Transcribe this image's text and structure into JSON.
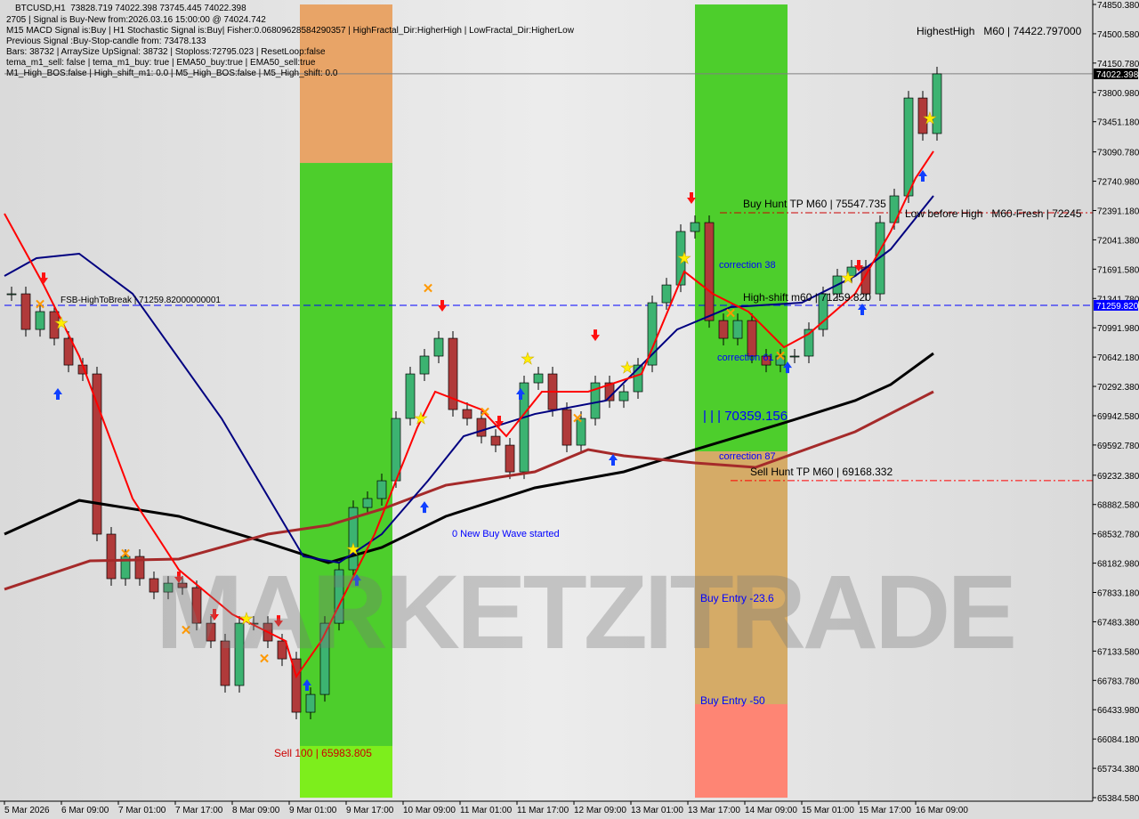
{
  "header": {
    "symbol_line": "BTCUSD,H1  73828.719 74022.398 73745.445 74022.398",
    "lines": [
      "2705 | Signal is Buy-New from:2026.03.16 15:00:00 @ 74024.742",
      "M15 MACD Signal is:Buy | H1 Stochastic Signal is:Buy| Fisher:0.06809628584290357 | HighFractal_Dir:HigherHigh | LowFractal_Dir:HigherLow",
      "Previous Signal :Buy-Stop-candle from: 73478.133",
      "Bars: 38732 | ArraySize UpSignal: 38732 | Stoploss:72795.023 | ResetLoop:false",
      "tema_m1_sell: false | tema_m1_buy: true | EMA50_buy:true | EMA50_sell:true",
      "M1_High_BOS:false | High_shift_m1: 0.0 | M5_High_BOS:false | M5_High_shift: 0.0"
    ]
  },
  "watermark": "MARKETZITRADE",
  "colors": {
    "bull": "#3cb371",
    "bear": "#b03a3a",
    "ema_black": "#000000",
    "ema_brown": "#a52a2a",
    "ema_navy": "#000080",
    "ema_red": "#ff0000",
    "zone_green": "#44cc22",
    "zone_red": "#ff7f6e",
    "zone_tan": "#d4a860",
    "current_price_bg": "#000000",
    "level_bg": "#0000ff"
  },
  "chart_data": {
    "type": "candlestick",
    "symbol": "BTCUSD",
    "timeframe": "H1",
    "ylim": [
      65384.58,
      74850.38
    ],
    "grid": false,
    "y_ticks": [
      "74850.380",
      "74500.580",
      "74150.780",
      "73800.980",
      "73451.180",
      "73090.780",
      "72740.980",
      "72391.180",
      "72041.380",
      "71691.580",
      "71341.780",
      "70991.980",
      "70642.180",
      "70292.380",
      "69942.580",
      "69592.780",
      "69232.380",
      "68882.580",
      "68532.780",
      "68182.980",
      "67833.180",
      "67483.380",
      "67133.580",
      "66783.780",
      "66433.980",
      "66084.180",
      "65734.380",
      "65384.580"
    ],
    "x_ticks": [
      "5 Mar 2026",
      "6 Mar 09:00",
      "7 Mar 01:00",
      "7 Mar 17:00",
      "8 Mar 09:00",
      "9 Mar 01:00",
      "9 Mar 17:00",
      "10 Mar 09:00",
      "11 Mar 01:00",
      "11 Mar 17:00",
      "12 Mar 09:00",
      "13 Mar 01:00",
      "13 Mar 17:00",
      "14 Mar 09:00",
      "15 Mar 01:00",
      "15 Mar 17:00",
      "16 Mar 09:00"
    ],
    "current_price": "74022.398",
    "level_price": "71259.820",
    "closes_start": "2026-03-05T17:00",
    "closes_step_hours": 4,
    "closes": [
      71397,
      70972,
      71185,
      70866,
      70547,
      70441,
      68529,
      67998,
      68263,
      67998,
      67838,
      67944,
      67891,
      67466,
      67254,
      66723,
      67466,
      67466,
      67254,
      67041,
      66404,
      66616,
      67466,
      68104,
      68847,
      68954,
      69166,
      69910,
      70441,
      70654,
      70866,
      70016,
      69910,
      69697,
      69591,
      69272,
      70335,
      70441,
      70016,
      69591,
      69910,
      70335,
      70122,
      70229,
      70547,
      71291,
      71503,
      72141,
      72247,
      71078,
      70866,
      71078,
      70654,
      70547,
      70654,
      70654,
      70972,
      71397,
      71610,
      71716,
      71397,
      72247,
      72566,
      73734,
      73310,
      74022
    ],
    "series": [
      {
        "color": "#000000",
        "points": [
          [
            "2026-03-05T17:00",
            68529
          ],
          [
            "2026-03-06T14:00",
            68932
          ],
          [
            "2026-03-07T18:00",
            68742
          ],
          [
            "2026-03-08T19:00",
            68423
          ],
          [
            "2026-03-09T12:00",
            68189
          ],
          [
            "2026-03-10T03:00",
            68370
          ],
          [
            "2026-03-10T21:00",
            68742
          ],
          [
            "2026-03-11T22:00",
            69082
          ],
          [
            "2026-03-12T23:00",
            69273
          ],
          [
            "2026-03-13T19:00",
            69538
          ],
          [
            "2026-03-14T20:00",
            69857
          ],
          [
            "2026-03-15T16:00",
            70123
          ],
          [
            "2026-03-16T02:00",
            70314
          ],
          [
            "2026-03-16T14:00",
            70686
          ]
        ]
      },
      {
        "color": "#a52a2a",
        "points": [
          [
            "2026-03-05T17:00",
            67871
          ],
          [
            "2026-03-06T17:00",
            68210
          ],
          [
            "2026-03-07T18:00",
            68232
          ],
          [
            "2026-03-08T19:00",
            68529
          ],
          [
            "2026-03-09T12:00",
            68635
          ],
          [
            "2026-03-10T03:00",
            68827
          ],
          [
            "2026-03-10T21:00",
            69113
          ],
          [
            "2026-03-11T22:00",
            69273
          ],
          [
            "2026-03-12T13:00",
            69538
          ],
          [
            "2026-03-12T23:00",
            69464
          ],
          [
            "2026-03-13T19:00",
            69379
          ],
          [
            "2026-03-14T12:00",
            69326
          ],
          [
            "2026-03-15T16:00",
            69751
          ],
          [
            "2026-03-16T14:00",
            70229
          ]
        ]
      },
      {
        "color": "#000080",
        "points": [
          [
            "2026-03-05T17:00",
            71610
          ],
          [
            "2026-03-06T02:00",
            71823
          ],
          [
            "2026-03-06T14:00",
            71876
          ],
          [
            "2026-03-07T05:00",
            71398
          ],
          [
            "2026-03-08T06:00",
            69910
          ],
          [
            "2026-03-09T05:00",
            68264
          ],
          [
            "2026-03-09T15:00",
            68189
          ],
          [
            "2026-03-10T03:00",
            68529
          ],
          [
            "2026-03-10T16:00",
            69167
          ],
          [
            "2026-03-11T02:00",
            69698
          ],
          [
            "2026-03-11T22:00",
            69963
          ],
          [
            "2026-03-12T18:00",
            70123
          ],
          [
            "2026-03-13T14:00",
            70972
          ],
          [
            "2026-03-14T05:00",
            71238
          ],
          [
            "2026-03-15T01:00",
            71291
          ],
          [
            "2026-03-15T16:00",
            71610
          ],
          [
            "2026-03-16T02:00",
            71929
          ],
          [
            "2026-03-16T14:00",
            72566
          ]
        ]
      },
      {
        "color": "#ff0000",
        "points": [
          [
            "2026-03-05T17:00",
            72354
          ],
          [
            "2026-03-06T04:00",
            71504
          ],
          [
            "2026-03-06T14:00",
            70654
          ],
          [
            "2026-03-07T05:00",
            68954
          ],
          [
            "2026-03-07T18:00",
            68104
          ],
          [
            "2026-03-08T09:00",
            67573
          ],
          [
            "2026-03-09T00:00",
            67254
          ],
          [
            "2026-03-09T03:00",
            66829
          ],
          [
            "2026-03-09T10:00",
            67254
          ],
          [
            "2026-03-10T01:00",
            68529
          ],
          [
            "2026-03-10T13:00",
            69804
          ],
          [
            "2026-03-10T18:00",
            70229
          ],
          [
            "2026-03-11T07:00",
            70016
          ],
          [
            "2026-03-11T14:00",
            69698
          ],
          [
            "2026-03-12T00:00",
            70229
          ],
          [
            "2026-03-12T13:00",
            70229
          ],
          [
            "2026-03-13T04:00",
            70441
          ],
          [
            "2026-03-13T16:00",
            71663
          ],
          [
            "2026-03-14T00:00",
            71398
          ],
          [
            "2026-03-14T10:00",
            71185
          ],
          [
            "2026-03-14T20:00",
            70760
          ],
          [
            "2026-03-15T03:00",
            70919
          ],
          [
            "2026-03-15T16:00",
            71398
          ],
          [
            "2026-03-16T02:00",
            72142
          ],
          [
            "2026-03-16T09:00",
            72779
          ],
          [
            "2026-03-16T14:00",
            73098
          ]
        ]
      }
    ],
    "zones": [
      {
        "from": "2026-03-09T04:00",
        "to": "2026-03-10T06:00",
        "bands": [
          {
            "top": 74850,
            "bottom": 72959,
            "color": "#e8a060"
          },
          {
            "top": 72959,
            "bottom": 66001,
            "color": "#44cc22"
          },
          {
            "top": 66001,
            "bottom": 65384,
            "color": "#77ee11"
          }
        ]
      },
      {
        "from": "2026-03-13T19:00",
        "to": "2026-03-14T21:00",
        "bands": [
          {
            "top": 74850,
            "bottom": 69517,
            "color": "#44cc22"
          },
          {
            "top": 69517,
            "bottom": 66500,
            "color": "#d4a860"
          },
          {
            "top": 66500,
            "bottom": 65384,
            "color": "#ff7f6e"
          }
        ]
      }
    ],
    "hlines": [
      {
        "price": 71259.82,
        "color": "#0000ff",
        "style": "dash",
        "from": "2026-03-05T17:00"
      },
      {
        "price": 69168.332,
        "color": "#ff0000",
        "style": "dashdot",
        "from": "2026-03-14T05:00"
      },
      {
        "price": 72364,
        "color": "#cc0000",
        "style": "dashdot",
        "from": "2026-03-14T02:00"
      },
      {
        "price": 74022.398,
        "color": "#808080",
        "style": "solid",
        "from": "2026-03-05T17:00"
      }
    ],
    "markers": {
      "up_arrow": [
        [
          "2026-03-06T08:00",
          70197
        ],
        [
          "2026-03-09T06:00",
          66723
        ],
        [
          "2026-03-09T20:00",
          67976
        ],
        [
          "2026-03-10T15:00",
          68847
        ],
        [
          "2026-03-11T18:00",
          70197
        ],
        [
          "2026-03-12T20:00",
          69411
        ],
        [
          "2026-03-14T21:00",
          70515
        ],
        [
          "2026-03-15T18:00",
          71206
        ],
        [
          "2026-03-16T11:00",
          72800
        ]
      ],
      "down_arrow": [
        [
          "2026-03-06T04:00",
          71588
        ],
        [
          "2026-03-07T18:00",
          68019
        ],
        [
          "2026-03-08T04:00",
          67573
        ],
        [
          "2026-03-08T22:00",
          67498
        ],
        [
          "2026-03-10T20:00",
          71259
        ],
        [
          "2026-03-11T12:00",
          69878
        ],
        [
          "2026-03-12T15:00",
          70908
        ],
        [
          "2026-03-13T18:00",
          72545
        ],
        [
          "2026-03-15T17:00",
          71737
        ]
      ],
      "star": [
        [
          "2026-03-06T09:00",
          71047
        ],
        [
          "2026-03-08T13:00",
          67520
        ],
        [
          "2026-03-09T19:00",
          68348
        ],
        [
          "2026-03-10T14:00",
          69910
        ],
        [
          "2026-03-11T20:00",
          70622
        ],
        [
          "2026-03-13T00:00",
          70515
        ],
        [
          "2026-03-13T16:00",
          71822
        ],
        [
          "2026-03-15T14:00",
          71588
        ],
        [
          "2026-03-16T13:00",
          73490
        ]
      ],
      "x_mark": [
        [
          "2026-03-06T03:00",
          71270
        ],
        [
          "2026-03-07T03:00",
          68295
        ],
        [
          "2026-03-07T20:00",
          67382
        ],
        [
          "2026-03-08T18:00",
          67041
        ],
        [
          "2026-03-10T16:00",
          71461
        ],
        [
          "2026-03-11T08:00",
          69984
        ],
        [
          "2026-03-12T10:00",
          69910
        ],
        [
          "2026-03-14T05:00",
          71163
        ],
        [
          "2026-03-14T19:00",
          70654
        ]
      ]
    },
    "annotations": {
      "fsb": "FSB-HighToBreak | 71259.82000000001",
      "highest_high": "HighestHigh   M60 | 74422.797000",
      "buy_hunt": "Buy Hunt TP M60 | 75547.735",
      "low_before_high": "Low before High   M60-Fresh | 72245",
      "correction38": "correction 38",
      "high_shift": "High-shift m60 | 71259.820",
      "correction61": "correction 61",
      "level": "| | | 70359.156",
      "correction87": "correction 87",
      "sell_hunt": "Sell Hunt TP M60 | 69168.332",
      "new_wave": "0 New Buy Wave started",
      "buy_entry_236": "Buy Entry -23.6",
      "buy_entry_50": "Buy Entry -50",
      "sell100": "Sell 100 | 65983.805"
    }
  }
}
